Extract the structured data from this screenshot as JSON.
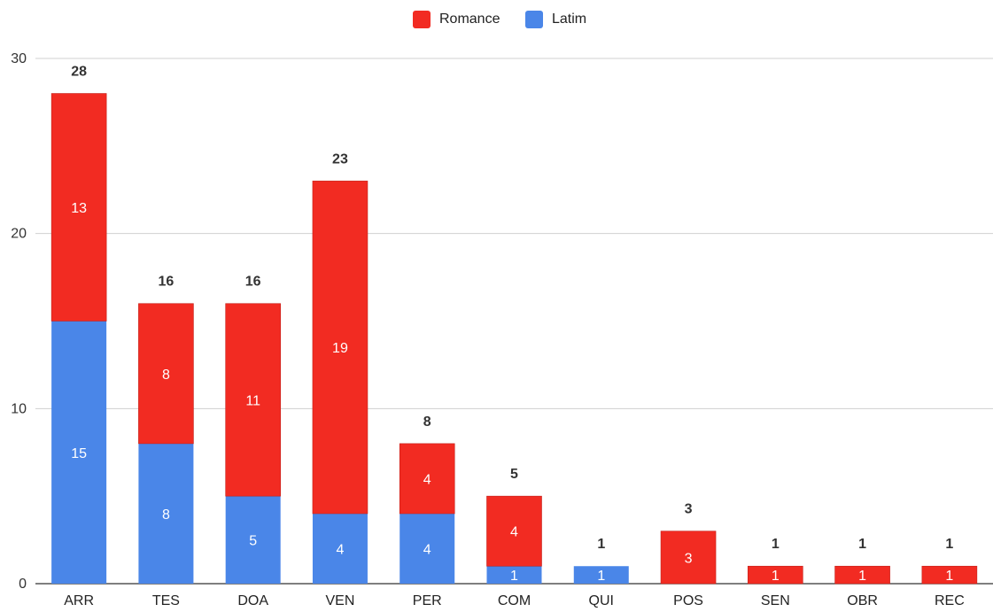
{
  "chart_data": {
    "type": "bar",
    "stacked": true,
    "categories": [
      "ARR",
      "TES",
      "DOA",
      "VEN",
      "PER",
      "COM",
      "QUI",
      "POS",
      "SEN",
      "OBR",
      "REC"
    ],
    "series": [
      {
        "name": "Latim",
        "color": "#4A86E8",
        "values": [
          15,
          8,
          5,
          4,
          4,
          1,
          1,
          0,
          0,
          0,
          0
        ]
      },
      {
        "name": "Romance",
        "color": "#F22B22",
        "values": [
          13,
          8,
          11,
          19,
          4,
          4,
          0,
          3,
          1,
          1,
          1
        ]
      }
    ],
    "totals": [
      28,
      16,
      16,
      23,
      8,
      5,
      1,
      3,
      1,
      1,
      1
    ],
    "ylim": [
      0,
      30
    ],
    "yticks": [
      0,
      10,
      20,
      30
    ],
    "grid": true,
    "legend_position": "top-center",
    "legend_order": [
      "Romance",
      "Latim"
    ]
  }
}
